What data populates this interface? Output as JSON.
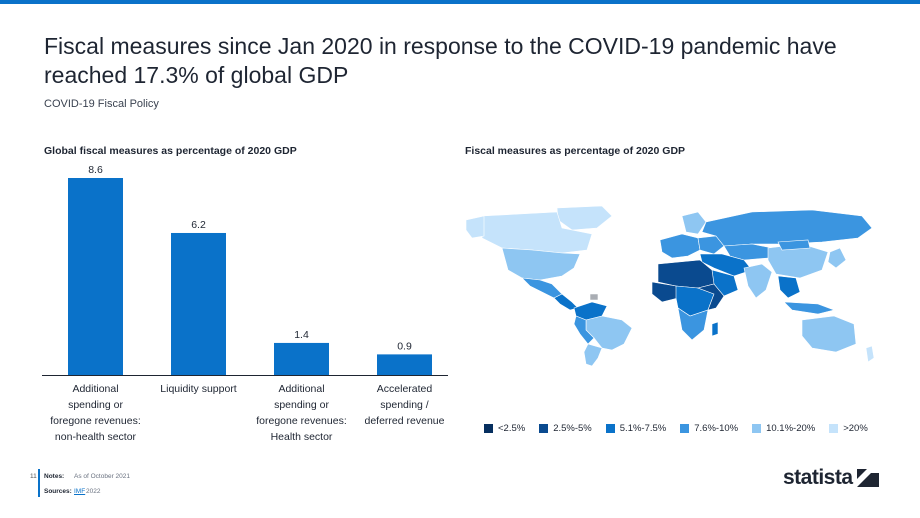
{
  "title": "Fiscal measures since Jan 2020 in response to the COVID-19 pandemic have reached 17.3% of global GDP",
  "subtitle": "COVID-19 Fiscal Policy",
  "left_section_title": "Global fiscal measures as percentage of 2020 GDP",
  "right_section_title": "Fiscal measures as percentage of 2020 GDP",
  "colors": {
    "bar": "#0a72c9",
    "accent": "#0a72c9",
    "text": "#1e2532",
    "map_default": "#c5e3fb"
  },
  "chart_data": [
    {
      "type": "bar",
      "title": "Global fiscal measures as percentage of 2020 GDP",
      "categories": [
        [
          "Additional",
          "spending or",
          "foregone revenues:",
          "non-health sector"
        ],
        [
          "Liquidity support"
        ],
        [
          "Additional",
          "spending or",
          "foregone revenues:",
          "Health sector"
        ],
        [
          "Accelerated",
          "spending /",
          "deferred revenue"
        ]
      ],
      "values": [
        8.6,
        6.2,
        1.4,
        0.9
      ],
      "value_labels": [
        "8.6",
        "6.2",
        "1.4",
        "0.9"
      ],
      "ylim": [
        0,
        8.6
      ],
      "xlabel": "",
      "ylabel": "",
      "grid": false
    },
    {
      "type": "map",
      "title": "Fiscal measures as percentage of 2020 GDP",
      "legend": [
        {
          "label": "<2.5%",
          "color": "#062f5f"
        },
        {
          "label": "2.5%-5%",
          "color": "#0a4a8f"
        },
        {
          "label": "5.1%-7.5%",
          "color": "#0a72c9"
        },
        {
          "label": "7.6%-10%",
          "color": "#3b95e0"
        },
        {
          "label": "10.1%-20%",
          "color": "#8ec6f2"
        },
        {
          "label": ">20%",
          "color": "#c5e3fb"
        }
      ]
    }
  ],
  "footer": {
    "page_number": "11",
    "notes_label": "Notes:",
    "notes_value": "As of October 2021",
    "sources_label": "Sources:",
    "sources_value": "IMF",
    "sources_year": "2022"
  },
  "logo": {
    "text": "statista"
  }
}
